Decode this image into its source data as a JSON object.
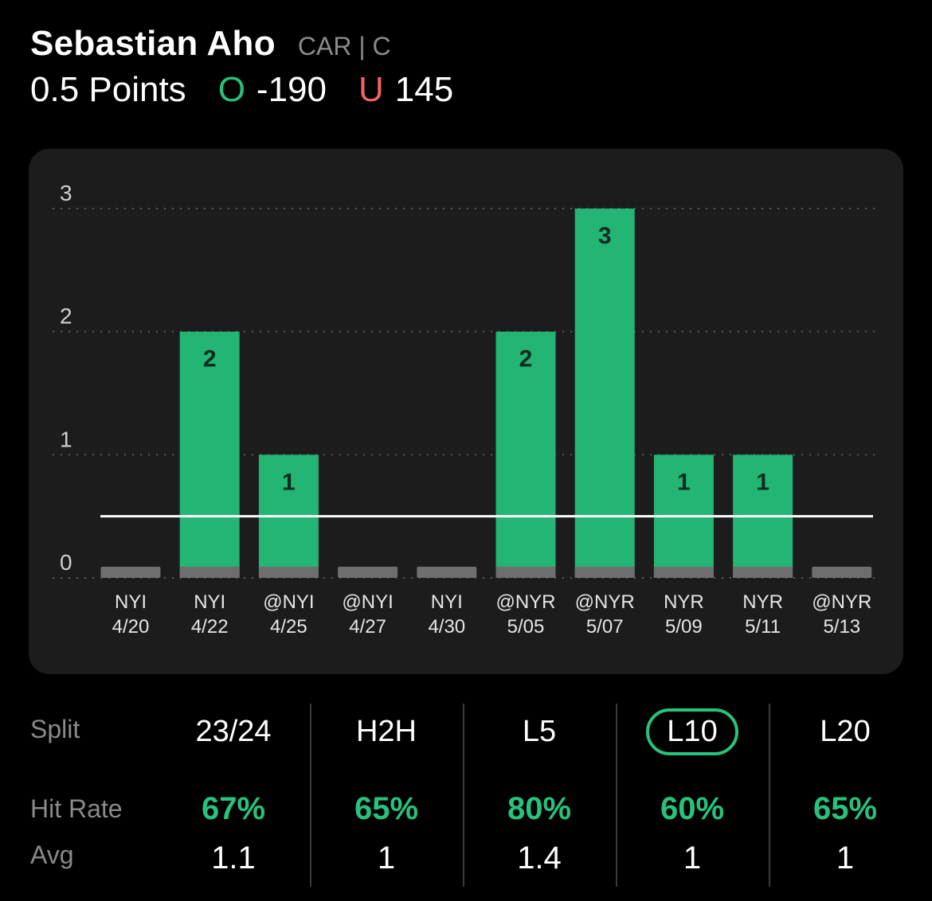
{
  "header": {
    "player_name": "Sebastian Aho",
    "team_pos": "CAR | C",
    "prop_line": "0.5 Points",
    "over_marker": "O",
    "over_odds": "-190",
    "under_marker": "U",
    "under_odds": "145"
  },
  "colors": {
    "hit": "#22b573",
    "miss": "#6e6e6e",
    "accent": "#27c27d",
    "under": "#f06464",
    "card": "#1c1c1c"
  },
  "chart_data": {
    "type": "bar",
    "title": "",
    "xlabel": "",
    "ylabel": "",
    "ylim": [
      0,
      3
    ],
    "yticks": [
      "0",
      "1",
      "2",
      "3"
    ],
    "line_value": 0.5,
    "grid": true,
    "categories": [
      {
        "opp": "NYI",
        "date": "4/20"
      },
      {
        "opp": "NYI",
        "date": "4/22"
      },
      {
        "opp": "@NYI",
        "date": "4/25"
      },
      {
        "opp": "@NYI",
        "date": "4/27"
      },
      {
        "opp": "NYI",
        "date": "4/30"
      },
      {
        "opp": "@NYR",
        "date": "5/05"
      },
      {
        "opp": "@NYR",
        "date": "5/07"
      },
      {
        "opp": "NYR",
        "date": "5/09"
      },
      {
        "opp": "NYR",
        "date": "5/11"
      },
      {
        "opp": "@NYR",
        "date": "5/13"
      }
    ],
    "values": [
      0,
      2,
      1,
      0,
      0,
      2,
      3,
      1,
      1,
      0
    ]
  },
  "stats": {
    "split_label": "Split",
    "hit_rate_label": "Hit Rate",
    "avg_label": "Avg",
    "columns": [
      {
        "label": "23/24",
        "hit_rate": "67%",
        "avg": "1.1",
        "selected": false
      },
      {
        "label": "H2H",
        "hit_rate": "65%",
        "avg": "1",
        "selected": false
      },
      {
        "label": "L5",
        "hit_rate": "80%",
        "avg": "1.4",
        "selected": false
      },
      {
        "label": "L10",
        "hit_rate": "60%",
        "avg": "1",
        "selected": true
      },
      {
        "label": "L20",
        "hit_rate": "65%",
        "avg": "1",
        "selected": false
      }
    ]
  }
}
